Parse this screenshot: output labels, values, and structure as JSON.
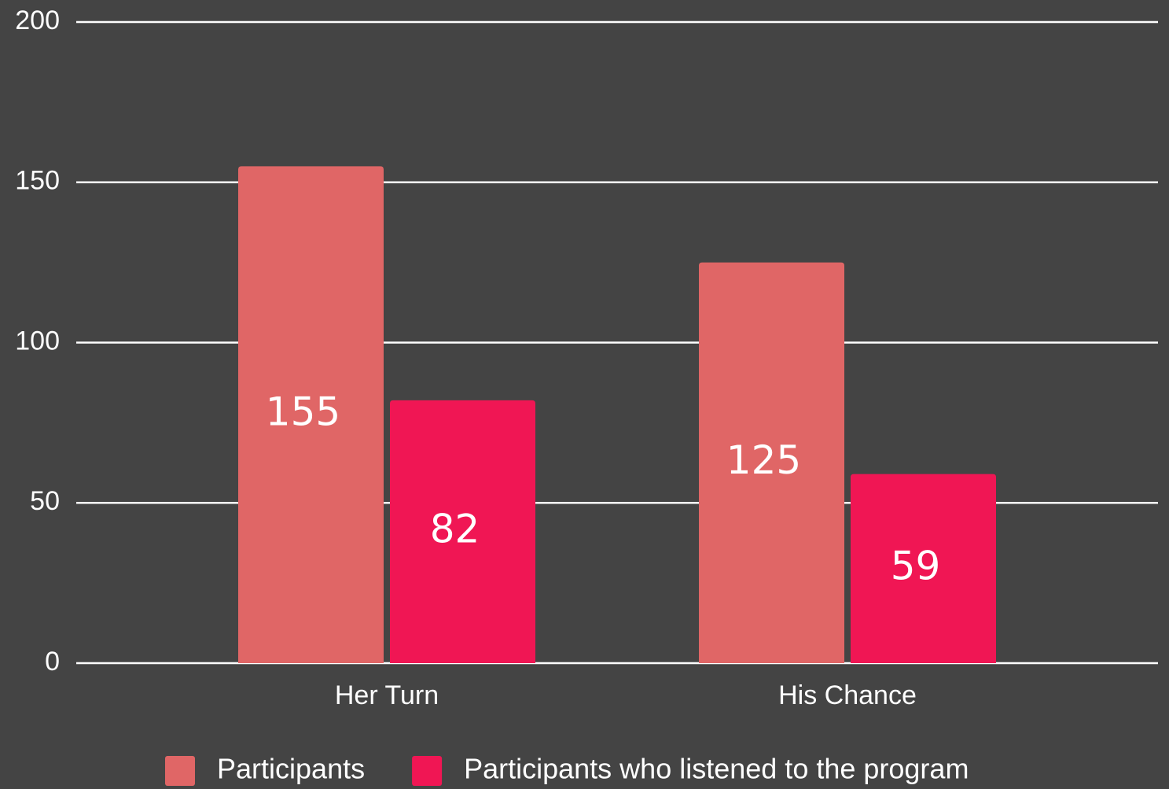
{
  "chart_data": {
    "type": "bar",
    "categories": [
      "Her Turn",
      "His Chance"
    ],
    "series": [
      {
        "name": "Participants",
        "color": "#e06666",
        "values": [
          155,
          125
        ]
      },
      {
        "name": "Participants who listened to the program",
        "color": "#f01654",
        "values": [
          82,
          59
        ]
      }
    ],
    "ylim": [
      0,
      200
    ],
    "yticks": [
      0,
      50,
      100,
      150,
      200
    ],
    "grid": true,
    "legend": "bottom"
  }
}
